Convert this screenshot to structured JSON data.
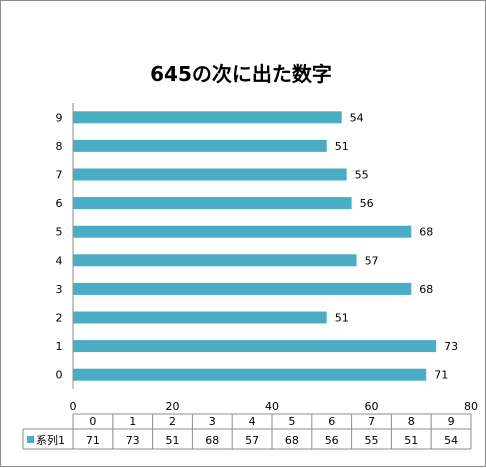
{
  "chart_data": {
    "type": "bar",
    "orientation": "horizontal",
    "title": "645の次に出た数字",
    "categories": [
      "0",
      "1",
      "2",
      "3",
      "4",
      "5",
      "6",
      "7",
      "8",
      "9"
    ],
    "series": [
      {
        "name": "系列1",
        "values": [
          71,
          73,
          51,
          68,
          57,
          68,
          56,
          55,
          51,
          54
        ]
      }
    ],
    "xlim": [
      0,
      80
    ],
    "x_ticks": [
      0,
      20,
      40,
      60,
      80
    ],
    "grid": false,
    "bar_color": "#4bacc6",
    "data_labels": true,
    "data_table": true
  }
}
